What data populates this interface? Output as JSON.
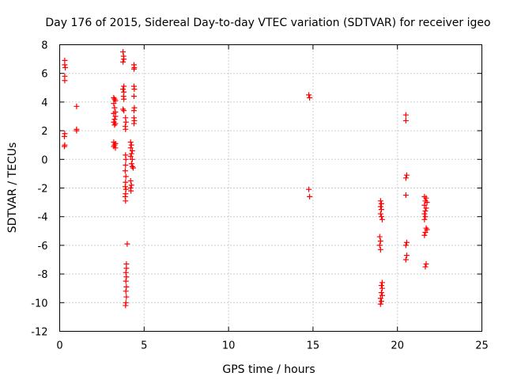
{
  "chart_data": {
    "type": "scatter",
    "title": "Day 176 of 2015, Sidereal Day-to-day VTEC variation (SDTVAR) for receiver igeo",
    "xlabel": "GPS time / hours",
    "ylabel": "SDTVAR / TECUs",
    "xlim": [
      0,
      25
    ],
    "ylim": [
      -12,
      8
    ],
    "xticks": [
      0,
      5,
      10,
      15,
      20,
      25
    ],
    "yticks": [
      -12,
      -10,
      -8,
      -6,
      -4,
      -2,
      0,
      2,
      4,
      6,
      8
    ],
    "grid": true,
    "marker": "+",
    "color": "#ff0000",
    "series": [
      {
        "name": "SDTVAR",
        "points": [
          [
            0.3,
            6.9
          ],
          [
            0.3,
            6.6
          ],
          [
            0.33,
            6.4
          ],
          [
            0.3,
            5.8
          ],
          [
            0.3,
            5.5
          ],
          [
            0.3,
            1.8
          ],
          [
            0.28,
            1.6
          ],
          [
            0.3,
            1.0
          ],
          [
            0.28,
            0.9
          ],
          [
            1.0,
            3.7
          ],
          [
            1.0,
            2.1
          ],
          [
            1.0,
            2.0
          ],
          [
            3.2,
            4.3
          ],
          [
            3.25,
            4.2
          ],
          [
            3.3,
            4.1
          ],
          [
            3.2,
            3.9
          ],
          [
            3.25,
            3.6
          ],
          [
            3.3,
            3.3
          ],
          [
            3.2,
            3.2
          ],
          [
            3.3,
            3.0
          ],
          [
            3.25,
            2.8
          ],
          [
            3.2,
            2.6
          ],
          [
            3.3,
            2.5
          ],
          [
            3.25,
            2.4
          ],
          [
            3.2,
            1.2
          ],
          [
            3.3,
            1.1
          ],
          [
            3.25,
            1.0
          ],
          [
            3.2,
            0.9
          ],
          [
            3.3,
            0.8
          ],
          [
            3.75,
            7.5
          ],
          [
            3.78,
            7.2
          ],
          [
            3.8,
            7.0
          ],
          [
            3.75,
            6.8
          ],
          [
            3.8,
            5.1
          ],
          [
            3.75,
            4.9
          ],
          [
            3.8,
            4.7
          ],
          [
            3.78,
            4.4
          ],
          [
            3.8,
            4.2
          ],
          [
            3.75,
            3.5
          ],
          [
            3.8,
            3.4
          ],
          [
            3.9,
            2.9
          ],
          [
            3.92,
            2.6
          ],
          [
            3.88,
            2.3
          ],
          [
            3.9,
            2.1
          ],
          [
            3.9,
            0.3
          ],
          [
            3.92,
            0.0
          ],
          [
            3.9,
            -0.4
          ],
          [
            3.88,
            -0.8
          ],
          [
            3.92,
            -1.2
          ],
          [
            3.9,
            -1.6
          ],
          [
            3.88,
            -1.9
          ],
          [
            3.92,
            -2.1
          ],
          [
            3.9,
            -2.4
          ],
          [
            3.88,
            -2.6
          ],
          [
            3.9,
            -2.9
          ],
          [
            4.0,
            -5.9
          ],
          [
            3.95,
            -7.3
          ],
          [
            3.95,
            -7.6
          ],
          [
            3.92,
            -7.9
          ],
          [
            3.95,
            -8.2
          ],
          [
            3.92,
            -8.5
          ],
          [
            3.95,
            -8.9
          ],
          [
            3.92,
            -9.2
          ],
          [
            3.95,
            -9.6
          ],
          [
            3.92,
            -10.0
          ],
          [
            3.9,
            -10.2
          ],
          [
            4.2,
            1.2
          ],
          [
            4.25,
            1.0
          ],
          [
            4.2,
            0.8
          ],
          [
            4.3,
            0.6
          ],
          [
            4.25,
            0.4
          ],
          [
            4.2,
            0.2
          ],
          [
            4.3,
            0.0
          ],
          [
            4.25,
            -0.3
          ],
          [
            4.3,
            -0.5
          ],
          [
            4.35,
            -0.6
          ],
          [
            4.2,
            -1.5
          ],
          [
            4.25,
            -1.8
          ],
          [
            4.2,
            -2.0
          ],
          [
            4.22,
            -2.2
          ],
          [
            4.4,
            6.6
          ],
          [
            4.42,
            6.4
          ],
          [
            4.4,
            6.3
          ],
          [
            4.4,
            5.1
          ],
          [
            4.42,
            4.9
          ],
          [
            4.4,
            4.4
          ],
          [
            4.42,
            3.6
          ],
          [
            4.4,
            3.4
          ],
          [
            4.4,
            2.9
          ],
          [
            4.42,
            2.7
          ],
          [
            4.4,
            2.5
          ],
          [
            14.75,
            4.5
          ],
          [
            14.8,
            4.3
          ],
          [
            14.75,
            -2.1
          ],
          [
            14.8,
            -2.6
          ],
          [
            19.0,
            -2.9
          ],
          [
            19.05,
            -3.1
          ],
          [
            19.0,
            -3.3
          ],
          [
            19.05,
            -3.5
          ],
          [
            19.0,
            -3.8
          ],
          [
            19.05,
            -4.0
          ],
          [
            19.1,
            -4.2
          ],
          [
            18.95,
            -5.4
          ],
          [
            19.0,
            -5.7
          ],
          [
            18.95,
            -6.0
          ],
          [
            19.0,
            -6.3
          ],
          [
            19.1,
            -8.6
          ],
          [
            19.05,
            -8.8
          ],
          [
            19.1,
            -9.0
          ],
          [
            19.05,
            -9.3
          ],
          [
            19.1,
            -9.5
          ],
          [
            19.0,
            -9.7
          ],
          [
            19.05,
            -9.9
          ],
          [
            19.0,
            -10.1
          ],
          [
            20.5,
            3.1
          ],
          [
            20.5,
            2.7
          ],
          [
            20.55,
            -1.1
          ],
          [
            20.5,
            -1.3
          ],
          [
            20.5,
            -2.5
          ],
          [
            20.55,
            -5.8
          ],
          [
            20.5,
            -6.0
          ],
          [
            20.55,
            -6.7
          ],
          [
            20.5,
            -7.0
          ],
          [
            21.6,
            -2.6
          ],
          [
            21.7,
            -2.7
          ],
          [
            21.65,
            -2.9
          ],
          [
            21.75,
            -3.0
          ],
          [
            21.6,
            -3.2
          ],
          [
            21.7,
            -3.4
          ],
          [
            21.65,
            -3.6
          ],
          [
            21.6,
            -3.8
          ],
          [
            21.65,
            -4.0
          ],
          [
            21.6,
            -4.2
          ],
          [
            21.7,
            -4.8
          ],
          [
            21.75,
            -4.9
          ],
          [
            21.65,
            -5.1
          ],
          [
            21.6,
            -5.3
          ],
          [
            21.7,
            -7.3
          ],
          [
            21.65,
            -7.5
          ]
        ]
      }
    ]
  }
}
